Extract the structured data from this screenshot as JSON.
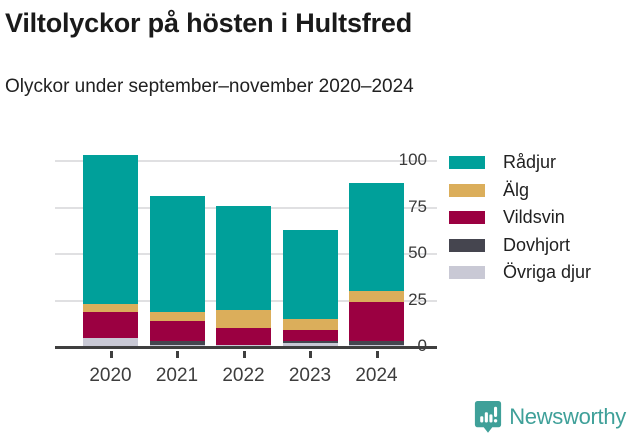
{
  "header": {
    "title": "Viltolyckor på hösten i Hultsfred",
    "subtitle": "Olyckor under september–november 2020–2024"
  },
  "chart_data": {
    "type": "bar",
    "stacked": true,
    "title": "Viltolyckor på hösten i Hultsfred",
    "subtitle": "Olyckor under september–november 2020–2024",
    "categories": [
      "2020",
      "2021",
      "2022",
      "2023",
      "2024"
    ],
    "series": [
      {
        "name": "Rådjur",
        "color": "#00A09A",
        "values": [
          80,
          62,
          56,
          48,
          58
        ]
      },
      {
        "name": "Älg",
        "color": "#DBAE5B",
        "values": [
          4,
          5,
          10,
          6,
          6
        ]
      },
      {
        "name": "Vildsvin",
        "color": "#9B0041",
        "values": [
          14,
          11,
          9,
          6,
          21
        ]
      },
      {
        "name": "Dovhjort",
        "color": "#45454F",
        "values": [
          0,
          2,
          0,
          1,
          2
        ]
      },
      {
        "name": "Övriga djur",
        "color": "#C9C9D5",
        "values": [
          5,
          1,
          1,
          2,
          1
        ]
      }
    ],
    "totals": [
      103,
      81,
      76,
      63,
      88
    ],
    "yticks": [
      0,
      25,
      50,
      75,
      100
    ],
    "ylim": [
      0,
      110
    ],
    "xlabel": "",
    "ylabel": "",
    "stack_order_bottom_to_top": [
      "Övriga djur",
      "Dovhjort",
      "Vildsvin",
      "Älg",
      "Rådjur"
    ],
    "legend_position": "right",
    "grid": "horizontal",
    "colors": {
      "axis": "#3F3F3F",
      "gridline": "#E0E0E2",
      "tick_label": "#3A3A3A"
    }
  },
  "footer": {
    "brand_name": "Newsworthy",
    "brand_icon": "newsworthy-speech-bubble-chart-icon",
    "brand_color": "#3FA099"
  }
}
